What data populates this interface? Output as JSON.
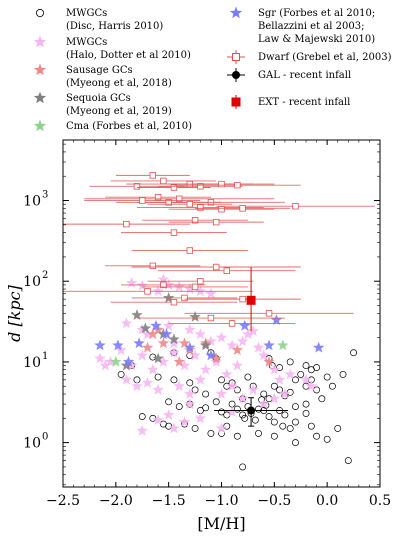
{
  "chart_data": {
    "type": "scatter",
    "xlabel": "[M/H]",
    "ylabel": "d [kpc]",
    "xlim": [
      -2.5,
      0.5
    ],
    "ylim_log10": [
      -0.55,
      3.75
    ],
    "y_scale": "log",
    "x_ticks": [
      "−2.5",
      "−2.0",
      "−1.5",
      "−1.0",
      "−0.5",
      "0.0",
      "0.5"
    ],
    "x_tick_values": [
      -2.5,
      -2.0,
      -1.5,
      -1.0,
      -0.5,
      0.0,
      0.5
    ],
    "y_ticks": [
      {
        "base": "10",
        "exp": "0",
        "value": 1
      },
      {
        "base": "10",
        "exp": "1",
        "value": 10
      },
      {
        "base": "10",
        "exp": "2",
        "value": 100
      },
      {
        "base": "10",
        "exp": "3",
        "value": 1000
      }
    ],
    "legend": {
      "placement": "top",
      "left_column": [
        {
          "key": "mwgc_disc",
          "line1": "MWGCs",
          "line2": "(Disc, Harris 2010)",
          "marker": "open-circle",
          "color": "#000000"
        },
        {
          "key": "mwgc_halo",
          "line1": "MWGCs",
          "line2": "(Halo, Dotter et al 2010)",
          "marker": "star",
          "color": "#f5b3f0"
        },
        {
          "key": "sausage",
          "line1": "Sausage GCs",
          "line2": "(Myeong et al, 2018)",
          "marker": "star",
          "color": "#ee8a8a"
        },
        {
          "key": "sequoia",
          "line1": "Sequoia GCs",
          "line2": "(Myeong et al, 2019)",
          "marker": "star",
          "color": "#808080"
        },
        {
          "key": "cma",
          "line1": "Cma (Forbes et al, 2010)",
          "line2": "",
          "marker": "star",
          "color": "#8fd08f"
        }
      ],
      "right_column": [
        {
          "key": "sgr",
          "lines": [
            "Sgr (Forbes et al 2010;",
            "Bellazzini et al 2003;",
            "Law & Majewski 2010)"
          ],
          "marker": "star",
          "color": "#7b7bff"
        },
        {
          "key": "dwarf",
          "lines": [
            "Dwarf (Grebel et al, 2003)"
          ],
          "marker": "open-square-errorbar",
          "color": "#e05050"
        },
        {
          "key": "gal",
          "lines": [
            "GAL - recent infall"
          ],
          "marker": "filled-circle-errorbar",
          "color": "#000000"
        },
        {
          "key": "ext",
          "lines": [
            "EXT - recent infall"
          ],
          "marker": "filled-square-errorbar",
          "color": "#e00000"
        }
      ]
    },
    "series": [
      {
        "key": "mwgc_disc",
        "name": "MWGCs (Disc, Harris 2010)",
        "points": [
          [
            -1.65,
            11.5
          ],
          [
            -1.45,
            13
          ],
          [
            -1.3,
            12
          ],
          [
            -1.1,
            13
          ],
          [
            -1.05,
            11
          ],
          [
            -0.55,
            11
          ],
          [
            -0.52,
            9
          ],
          [
            -0.45,
            8.5
          ],
          [
            -0.35,
            10
          ],
          [
            -0.2,
            9
          ],
          [
            -0.1,
            8.5
          ],
          [
            0.25,
            13
          ],
          [
            -1.95,
            7
          ],
          [
            -1.8,
            6
          ],
          [
            -1.6,
            6.5
          ],
          [
            -1.45,
            6
          ],
          [
            -1.3,
            5.5
          ],
          [
            -1.25,
            4.5
          ],
          [
            -1.15,
            4
          ],
          [
            -1.0,
            6
          ],
          [
            -0.95,
            5
          ],
          [
            -0.9,
            5.5
          ],
          [
            -0.85,
            4.5
          ],
          [
            -0.8,
            3.5
          ],
          [
            -0.75,
            6.5
          ],
          [
            -0.7,
            5
          ],
          [
            -0.6,
            4
          ],
          [
            -0.55,
            3.5
          ],
          [
            -0.5,
            5
          ],
          [
            -0.45,
            4.5
          ],
          [
            -0.4,
            3.8
          ],
          [
            -0.35,
            4.2
          ],
          [
            -0.3,
            6
          ],
          [
            -0.25,
            7
          ],
          [
            -0.2,
            5
          ],
          [
            -0.15,
            6
          ],
          [
            -0.1,
            4.5
          ],
          [
            -0.05,
            3.5
          ],
          [
            0.0,
            6.5
          ],
          [
            0.05,
            5
          ],
          [
            0.15,
            7
          ],
          [
            -0.15,
            8
          ],
          [
            -0.2,
            3
          ],
          [
            -0.3,
            2.8
          ],
          [
            -1.5,
            3.2
          ],
          [
            -1.4,
            2.8
          ],
          [
            -1.3,
            3
          ],
          [
            -1.2,
            2.5
          ],
          [
            -1.15,
            2.7
          ],
          [
            -1.05,
            3.2
          ],
          [
            -1.0,
            2.4
          ],
          [
            -0.95,
            2.2
          ],
          [
            -0.9,
            3
          ],
          [
            -0.85,
            2.6
          ],
          [
            -0.8,
            2.2
          ],
          [
            -0.78,
            2
          ],
          [
            -0.75,
            2.8
          ],
          [
            -0.72,
            2.3
          ],
          [
            -0.68,
            1.9
          ],
          [
            -0.65,
            2.6
          ],
          [
            -0.62,
            3.4
          ],
          [
            -0.58,
            2.9
          ],
          [
            -0.55,
            2.1
          ],
          [
            -0.5,
            1.8
          ],
          [
            -0.45,
            2.5
          ],
          [
            -0.42,
            1.6
          ],
          [
            -0.4,
            2.2
          ],
          [
            -0.35,
            1.5
          ],
          [
            -0.3,
            1.8
          ],
          [
            -0.2,
            2.3
          ],
          [
            -0.15,
            1.6
          ],
          [
            -0.1,
            1.2
          ],
          [
            0.0,
            1.1
          ],
          [
            0.1,
            1.5
          ],
          [
            0.2,
            0.6
          ],
          [
            -1.75,
            2.1
          ],
          [
            -1.65,
            2
          ],
          [
            -1.55,
            1.7
          ],
          [
            -1.5,
            1.6
          ],
          [
            -1.35,
            1.7
          ],
          [
            -1.25,
            1.5
          ],
          [
            -1.1,
            1.3
          ],
          [
            -1.0,
            1.3
          ],
          [
            -0.85,
            1.2
          ],
          [
            -0.65,
            1.3
          ],
          [
            -0.5,
            1.2
          ],
          [
            -0.8,
            0.5
          ],
          [
            -0.3,
            1.0
          ],
          [
            -0.95,
            1.6
          ],
          [
            -0.6,
            2.5
          ],
          [
            -1.85,
            9
          ]
        ]
      },
      {
        "key": "mwgc_halo",
        "name": "MWGCs (Halo, Dotter et al 2010)",
        "points": [
          [
            -1.85,
            95
          ],
          [
            -1.75,
            88
          ],
          [
            -1.5,
            90
          ],
          [
            -1.4,
            85
          ],
          [
            -1.3,
            80
          ],
          [
            -1.2,
            75
          ],
          [
            -1.1,
            70
          ],
          [
            -1.55,
            105
          ],
          [
            -1.6,
            75
          ],
          [
            -1.9,
            30
          ],
          [
            -1.75,
            25
          ],
          [
            -1.7,
            22
          ],
          [
            -1.5,
            28
          ],
          [
            -1.3,
            25
          ],
          [
            -1.2,
            22
          ],
          [
            -1.1,
            18
          ],
          [
            -1.0,
            20
          ],
          [
            -0.9,
            16
          ],
          [
            -0.8,
            18
          ],
          [
            -0.75,
            22
          ],
          [
            -0.7,
            24
          ],
          [
            -0.65,
            15
          ],
          [
            -1.95,
            14
          ],
          [
            -2.05,
            10
          ],
          [
            -2.15,
            11
          ],
          [
            -1.85,
            9
          ],
          [
            -1.75,
            12
          ],
          [
            -1.65,
            8
          ],
          [
            -1.55,
            10
          ],
          [
            -1.45,
            13
          ],
          [
            -1.35,
            9
          ],
          [
            -1.25,
            12
          ],
          [
            -1.15,
            8
          ],
          [
            -1.05,
            10
          ],
          [
            -0.95,
            7
          ],
          [
            -0.85,
            9
          ],
          [
            -0.6,
            12
          ],
          [
            -0.5,
            8
          ],
          [
            -0.45,
            6
          ],
          [
            -0.35,
            7
          ],
          [
            -0.2,
            6
          ],
          [
            -0.15,
            5
          ],
          [
            -2.1,
            9
          ],
          [
            -1.9,
            6
          ],
          [
            -1.8,
            5
          ],
          [
            -1.7,
            5.5
          ],
          [
            -1.6,
            4.5
          ],
          [
            -1.4,
            5
          ],
          [
            -1.3,
            4
          ],
          [
            -1.2,
            6
          ],
          [
            -1.0,
            4
          ],
          [
            -0.9,
            5
          ],
          [
            -0.8,
            3.5
          ],
          [
            -0.7,
            4.5
          ],
          [
            -0.6,
            3
          ],
          [
            -0.5,
            3.5
          ],
          [
            -0.4,
            4
          ],
          [
            -1.75,
            1.4
          ],
          [
            -1.6,
            1.9
          ],
          [
            -1.5,
            2.2
          ],
          [
            -1.45,
            1.5
          ],
          [
            -1.35,
            1.8
          ],
          [
            -1.2,
            2
          ],
          [
            -1.0,
            1.5
          ],
          [
            -0.9,
            2.4
          ],
          [
            -1.3,
            3.0
          ],
          [
            -1.45,
            17
          ]
        ]
      },
      {
        "key": "sausage",
        "name": "Sausage GCs (Myeong et al, 2018)",
        "points": [
          [
            -1.55,
            17
          ],
          [
            -1.15,
            17
          ],
          [
            -1.3,
            14
          ],
          [
            -0.85,
            14
          ],
          [
            -1.65,
            22
          ],
          [
            -1.4,
            10
          ],
          [
            -1.7,
            15
          ],
          [
            -1.35,
            17
          ],
          [
            -1.05,
            11
          ],
          [
            -0.55,
            10
          ],
          [
            -1.6,
            25
          ]
        ]
      },
      {
        "key": "sequoia",
        "name": "Sequoia GCs (Myeong et al, 2019)",
        "points": [
          [
            -1.8,
            38
          ],
          [
            -1.72,
            26
          ],
          [
            -1.55,
            22
          ],
          [
            -1.45,
            19
          ],
          [
            -1.25,
            36
          ],
          [
            -1.6,
            11
          ],
          [
            -1.9,
            9
          ],
          [
            -1.15,
            16
          ],
          [
            -1.5,
            62
          ]
        ]
      },
      {
        "key": "cma",
        "name": "Cma (Forbes et al, 2010)",
        "points": [
          [
            -2.0,
            10
          ],
          [
            -0.42,
            16
          ]
        ]
      },
      {
        "key": "sgr",
        "name": "Sgr",
        "points": [
          [
            -2.15,
            16
          ],
          [
            -1.98,
            16
          ],
          [
            -1.78,
            17
          ],
          [
            -1.62,
            28
          ],
          [
            -1.52,
            22
          ],
          [
            -1.3,
            15
          ],
          [
            -1.1,
            12
          ],
          [
            -0.55,
            16
          ],
          [
            -0.48,
            33
          ],
          [
            -0.08,
            15
          ],
          [
            -0.78,
            28
          ],
          [
            -1.88,
            10
          ]
        ]
      },
      {
        "key": "dwarf",
        "name": "Dwarf (Grebel et al, 2003)",
        "points": [
          [
            -1.65,
            2050,
            0.35
          ],
          [
            -1.55,
            1750,
            0.5
          ],
          [
            -1.8,
            1500,
            0.45
          ],
          [
            -1.45,
            1450,
            0.35
          ],
          [
            -1.2,
            1500,
            0.4
          ],
          [
            -1.3,
            1600,
            0.6
          ],
          [
            -1.0,
            1600,
            0.5
          ],
          [
            -0.85,
            1550,
            0.6
          ],
          [
            -0.3,
            850,
            0.75
          ],
          [
            -1.6,
            1100,
            0.5
          ],
          [
            -1.4,
            1050,
            0.9
          ],
          [
            -1.1,
            950,
            0.7
          ],
          [
            -1.5,
            950,
            0.5
          ],
          [
            -1.75,
            1000,
            0.55
          ],
          [
            -1.3,
            900,
            0.4
          ],
          [
            -1.2,
            820,
            0.6
          ],
          [
            -1.0,
            780,
            0.5
          ],
          [
            -0.8,
            800,
            0.45
          ],
          [
            -1.25,
            570,
            0.5
          ],
          [
            -1.05,
            540,
            0.45
          ],
          [
            -1.9,
            510,
            0.6
          ],
          [
            -1.45,
            400,
            0.5
          ],
          [
            -1.3,
            240,
            0.55
          ],
          [
            -1.65,
            155,
            0.45
          ],
          [
            -1.05,
            150,
            0.8
          ],
          [
            -0.95,
            135,
            0.65
          ],
          [
            -1.55,
            90,
            0.4
          ],
          [
            -1.25,
            85,
            0.5
          ],
          [
            -1.35,
            62,
            0.5
          ],
          [
            -0.8,
            60,
            0.55
          ],
          [
            -1.1,
            35,
            0.7
          ],
          [
            -0.9,
            30,
            0.6
          ],
          [
            -1.7,
            75,
            1.0
          ],
          [
            -1.2,
            100,
            0.5
          ],
          [
            -0.55,
            40,
            0.8
          ],
          [
            -1.45,
            55,
            0.6
          ]
        ]
      },
      {
        "key": "gal",
        "name": "GAL - recent infall",
        "point": [
          -0.72,
          2.5
        ],
        "xerr": 0.35,
        "yerr_low": 1.6,
        "yerr_high": 3.6
      },
      {
        "key": "ext",
        "name": "EXT - recent infall",
        "point": [
          -0.72,
          58
        ],
        "xerr": 0.0,
        "yerr_low": 24,
        "yerr_high": 150
      }
    ]
  }
}
